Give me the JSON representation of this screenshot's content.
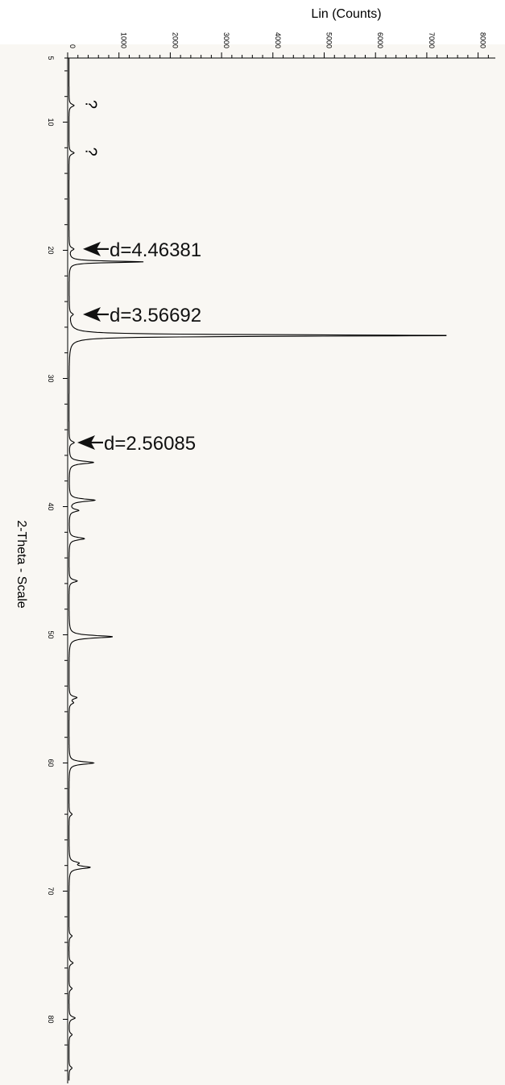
{
  "colors": {
    "plot_background": "#f9f7f3",
    "trace": "#000000",
    "page": "#ffffff"
  },
  "chart_data": {
    "type": "line",
    "orientation": "rotated-90",
    "xlabel": "2-Theta - Scale",
    "ylabel": "Lin (Counts)",
    "xlim": [
      5,
      85
    ],
    "ylim": [
      0,
      8300
    ],
    "x_ticks": [
      "5",
      "10",
      "20",
      "30",
      "40",
      "50",
      "60",
      "70",
      "80"
    ],
    "y_ticks": [
      "0",
      "1000",
      "2000",
      "3000",
      "4000",
      "5000",
      "6000",
      "7000",
      "8000"
    ],
    "grid": false,
    "peaks": [
      {
        "x": 8.7,
        "y": 100
      },
      {
        "x": 12.4,
        "y": 100
      },
      {
        "x": 19.9,
        "y": 90
      },
      {
        "x": 20.9,
        "y": 1450
      },
      {
        "x": 25.0,
        "y": 70
      },
      {
        "x": 26.65,
        "y": 7500
      },
      {
        "x": 35.0,
        "y": 100
      },
      {
        "x": 36.55,
        "y": 480
      },
      {
        "x": 39.5,
        "y": 500
      },
      {
        "x": 40.3,
        "y": 180
      },
      {
        "x": 42.5,
        "y": 300
      },
      {
        "x": 45.8,
        "y": 160
      },
      {
        "x": 50.15,
        "y": 850
      },
      {
        "x": 54.9,
        "y": 150
      },
      {
        "x": 55.3,
        "y": 80
      },
      {
        "x": 60.0,
        "y": 480
      },
      {
        "x": 64.0,
        "y": 60
      },
      {
        "x": 67.8,
        "y": 160
      },
      {
        "x": 68.15,
        "y": 400
      },
      {
        "x": 73.5,
        "y": 60
      },
      {
        "x": 75.6,
        "y": 80
      },
      {
        "x": 77.6,
        "y": 60
      },
      {
        "x": 79.9,
        "y": 120
      },
      {
        "x": 81.2,
        "y": 60
      },
      {
        "x": 83.8,
        "y": 60
      }
    ],
    "annotations": [
      {
        "x": 19.9,
        "text": "d=4.46381",
        "arrow": true
      },
      {
        "x": 25.0,
        "text": "d=3.56692",
        "arrow": true
      },
      {
        "x": 35.0,
        "text": "d=2.56085",
        "arrow": true
      },
      {
        "x": 8.7,
        "text": "?",
        "arrow": false
      },
      {
        "x": 12.4,
        "text": "?",
        "arrow": false
      }
    ]
  }
}
